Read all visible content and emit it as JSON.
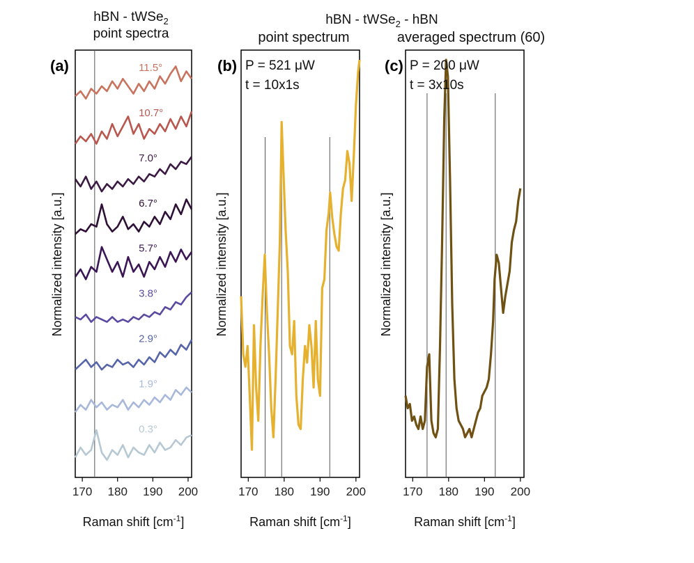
{
  "header": {
    "left_title_line1": "hBN - tWSe",
    "left_title_sub": "2",
    "left_title_line2": "point spectra",
    "right_title_main": "hBN - tWSe",
    "right_title_sub": "2",
    "right_title_tail": " - hBN",
    "panel_b_subtitle": "point spectrum",
    "panel_c_subtitle": "averaged spectrum (60)"
  },
  "chart_data": [
    {
      "panel": "(a)",
      "type": "line",
      "xlabel_main": "Raman shift [cm",
      "xlabel_sup": "-1",
      "xlabel_tail": "]",
      "ylabel": "Normalized intensity [a.u.]",
      "xlim": [
        168,
        201
      ],
      "xticks": [
        170,
        180,
        190,
        200
      ],
      "vlines": [
        173.5
      ],
      "series": [
        {
          "name": "11.5°",
          "color": "#c8735e",
          "label_x": 186,
          "x": [
            168,
            169.5,
            171,
            172.5,
            174,
            175.5,
            177,
            178.5,
            180,
            181.5,
            183,
            184.5,
            186,
            187.5,
            189,
            190.5,
            192,
            193.5,
            195,
            196.5,
            198,
            199.5,
            201
          ],
          "y": [
            0.3,
            0.5,
            0.2,
            0.6,
            0.4,
            0.7,
            0.5,
            0.9,
            0.6,
            1.0,
            0.7,
            0.4,
            0.8,
            0.5,
            0.9,
            0.6,
            1.1,
            0.8,
            1.2,
            1.5,
            0.9,
            1.3,
            1.0
          ]
        },
        {
          "name": "10.7°",
          "color": "#b9574f",
          "label_x": 186,
          "x": [
            168,
            169.5,
            171,
            172.5,
            174,
            175.5,
            177,
            178.5,
            180,
            181.5,
            183,
            184.5,
            186,
            187.5,
            189,
            190.5,
            192,
            193.5,
            195,
            196.5,
            198,
            199.5,
            201
          ],
          "y": [
            0.2,
            0.5,
            0.3,
            0.6,
            0.2,
            0.7,
            0.4,
            1.0,
            0.5,
            0.9,
            1.3,
            0.6,
            1.0,
            0.4,
            0.8,
            0.6,
            1.0,
            0.7,
            1.2,
            0.8,
            1.3,
            0.9,
            1.5
          ]
        },
        {
          "name": "7.0°",
          "color": "#3a1a42",
          "label_x": 186,
          "x": [
            168,
            169.5,
            171,
            172.5,
            174,
            175.5,
            177,
            178.5,
            180,
            181.5,
            183,
            184.5,
            186,
            187.5,
            189,
            190.5,
            192,
            193.5,
            195,
            196.5,
            198,
            199.5,
            201
          ],
          "y": [
            0.6,
            0.3,
            0.7,
            0.2,
            0.5,
            0.1,
            0.4,
            0.2,
            0.5,
            0.3,
            0.6,
            0.4,
            0.7,
            0.5,
            0.8,
            0.7,
            1.0,
            0.8,
            1.2,
            1.0,
            1.3,
            1.2,
            1.5
          ]
        },
        {
          "name": "6.7°",
          "color": "#2e0f35",
          "label_x": 186,
          "x": [
            168,
            169.5,
            171,
            172.5,
            174,
            175.5,
            177,
            178.5,
            180,
            181.5,
            183,
            184.5,
            186,
            187.5,
            189,
            190.5,
            192,
            193.5,
            195,
            196.5,
            198,
            199.5,
            201
          ],
          "y": [
            0.2,
            0.4,
            0.3,
            0.6,
            0.5,
            1.4,
            0.6,
            0.3,
            0.5,
            0.9,
            0.4,
            0.6,
            0.3,
            0.7,
            0.5,
            0.9,
            0.6,
            1.1,
            0.8,
            1.4,
            1.0,
            1.6,
            1.2
          ]
        },
        {
          "name": "5.7°",
          "color": "#3a1655",
          "label_x": 186,
          "x": [
            168,
            169.5,
            171,
            172.5,
            174,
            175.5,
            177,
            178.5,
            180,
            181.5,
            183,
            184.5,
            186,
            187.5,
            189,
            190.5,
            192,
            193.5,
            195,
            196.5,
            198,
            199.5,
            201
          ],
          "y": [
            0.3,
            0.6,
            0.2,
            0.7,
            0.5,
            1.5,
            1.0,
            0.5,
            0.9,
            0.3,
            1.1,
            0.5,
            0.8,
            0.3,
            0.9,
            0.6,
            1.1,
            0.7,
            1.3,
            0.9,
            1.4,
            1.0,
            1.3
          ]
        },
        {
          "name": "3.8°",
          "color": "#5b4aa0",
          "label_x": 186,
          "x": [
            168,
            169.5,
            171,
            172.5,
            174,
            175.5,
            177,
            178.5,
            180,
            181.5,
            183,
            184.5,
            186,
            187.5,
            189,
            190.5,
            192,
            193.5,
            195,
            196.5,
            198,
            199.5,
            201
          ],
          "y": [
            0.5,
            0.4,
            0.6,
            0.3,
            0.5,
            0.4,
            0.3,
            0.5,
            0.3,
            0.4,
            0.3,
            0.5,
            0.4,
            0.6,
            0.5,
            0.7,
            0.6,
            0.9,
            0.8,
            1.1,
            1.0,
            1.3,
            1.5
          ]
        },
        {
          "name": "2.9°",
          "color": "#5664aa",
          "label_x": 186,
          "x": [
            168,
            169.5,
            171,
            172.5,
            174,
            175.5,
            177,
            178.5,
            180,
            181.5,
            183,
            184.5,
            186,
            187.5,
            189,
            190.5,
            192,
            193.5,
            195,
            196.5,
            198,
            199.5,
            201
          ],
          "y": [
            0.2,
            0.4,
            0.6,
            0.3,
            0.5,
            0.2,
            0.4,
            0.3,
            0.6,
            0.4,
            0.5,
            0.3,
            0.6,
            0.4,
            0.7,
            0.5,
            0.9,
            0.7,
            1.0,
            0.8,
            1.2,
            1.0,
            1.4
          ]
        },
        {
          "name": "1.9°",
          "color": "#a8b8da",
          "label_x": 186,
          "x": [
            168,
            169.5,
            171,
            172.5,
            174,
            175.5,
            177,
            178.5,
            180,
            181.5,
            183,
            184.5,
            186,
            187.5,
            189,
            190.5,
            192,
            193.5,
            195,
            196.5,
            198,
            199.5,
            201
          ],
          "y": [
            0.3,
            0.6,
            0.4,
            0.8,
            0.5,
            0.7,
            0.4,
            0.6,
            0.5,
            0.8,
            0.4,
            0.7,
            0.5,
            0.8,
            0.6,
            0.9,
            0.7,
            1.0,
            0.8,
            1.2,
            1.0,
            1.3,
            1.1
          ]
        },
        {
          "name": "0.3°",
          "color": "#b6c8d3",
          "label_x": 186,
          "x": [
            168,
            169.5,
            171,
            172.5,
            174,
            175.5,
            177,
            178.5,
            180,
            181.5,
            183,
            184.5,
            186,
            187.5,
            189,
            190.5,
            192,
            193.5,
            195,
            196.5,
            198,
            199.5,
            201
          ],
          "y": [
            0.3,
            0.7,
            0.4,
            0.6,
            1.4,
            0.5,
            0.2,
            0.6,
            0.4,
            0.8,
            0.3,
            0.7,
            0.5,
            0.4,
            0.8,
            0.5,
            0.9,
            0.6,
            0.7,
            1.0,
            0.8,
            1.1,
            1.2
          ]
        }
      ]
    },
    {
      "panel": "(b)",
      "type": "line",
      "annotation1": "P = 521 μW",
      "annotation2": "t = 10x1s",
      "xlabel_main": "Raman shift [cm",
      "xlabel_sup": "-1",
      "xlabel_tail": "]",
      "ylabel": "Normalized intensity [a.u.]",
      "xlim": [
        168,
        201
      ],
      "ylim": [
        0,
        1
      ],
      "xticks": [
        170,
        180,
        190,
        200
      ],
      "vlines": [
        174.7,
        179.3,
        192.7
      ],
      "series": [
        {
          "name": "",
          "color": "#e6b12e",
          "x": [
            168,
            168.6,
            169.2,
            169.8,
            170.4,
            171,
            171.6,
            172.2,
            172.8,
            173.4,
            174,
            174.6,
            175.2,
            175.8,
            176.4,
            177,
            177.6,
            178.2,
            178.8,
            179.3,
            179.8,
            180.4,
            181,
            181.6,
            182.2,
            182.8,
            183.4,
            184,
            184.6,
            185.2,
            185.8,
            186.4,
            187,
            187.6,
            188.2,
            188.8,
            189.4,
            190,
            190.6,
            191.2,
            191.8,
            192.4,
            192.8,
            193.4,
            194,
            194.6,
            195.2,
            195.8,
            196.4,
            197,
            197.6,
            198.2,
            198.8,
            199.4,
            200,
            200.6,
            201
          ],
          "y": [
            0.42,
            0.28,
            0.25,
            0.3,
            0.18,
            0.05,
            0.35,
            0.2,
            0.12,
            0.3,
            0.42,
            0.52,
            0.38,
            0.28,
            0.15,
            0.08,
            0.22,
            0.38,
            0.55,
            0.84,
            0.72,
            0.58,
            0.48,
            0.3,
            0.28,
            0.36,
            0.18,
            0.11,
            0.1,
            0.22,
            0.3,
            0.26,
            0.35,
            0.3,
            0.2,
            0.36,
            0.22,
            0.18,
            0.44,
            0.46,
            0.58,
            0.62,
            0.67,
            0.61,
            0.57,
            0.54,
            0.53,
            0.62,
            0.68,
            0.7,
            0.77,
            0.74,
            0.65,
            0.76,
            0.88,
            0.96,
            0.99
          ]
        }
      ]
    },
    {
      "panel": "(c)",
      "type": "line",
      "annotation1": "P = 200 μW",
      "annotation2": "t = 3x10s",
      "xlabel_main": "Raman shift [cm",
      "xlabel_sup": "-1",
      "xlabel_tail": "]",
      "ylabel": "Normalized intensity [a.u.]",
      "xlim": [
        168,
        201
      ],
      "ylim": [
        0,
        1
      ],
      "xticks": [
        170,
        180,
        190,
        200
      ],
      "vlines": [
        174,
        179.3,
        193
      ],
      "series": [
        {
          "name": "",
          "color": "#6f5213",
          "x": [
            168,
            168.6,
            169.2,
            169.8,
            170.4,
            171,
            171.6,
            172.2,
            172.8,
            173.4,
            174,
            174.6,
            175.2,
            175.8,
            176.4,
            177,
            177.6,
            178.2,
            178.8,
            179.3,
            179.8,
            180.4,
            181,
            181.6,
            182.2,
            182.8,
            183.4,
            184,
            184.6,
            185.2,
            185.8,
            186.4,
            187,
            187.6,
            188.2,
            188.8,
            189.4,
            190,
            190.6,
            191.2,
            191.8,
            192.4,
            192.8,
            193.4,
            194,
            194.6,
            195.2,
            195.8,
            196.4,
            197,
            197.6,
            198.2,
            198.8,
            199.4,
            200
          ],
          "y": [
            0.18,
            0.15,
            0.16,
            0.12,
            0.13,
            0.11,
            0.1,
            0.13,
            0.1,
            0.12,
            0.25,
            0.28,
            0.12,
            0.09,
            0.08,
            0.1,
            0.3,
            0.55,
            0.85,
            0.99,
            0.95,
            0.7,
            0.4,
            0.22,
            0.15,
            0.12,
            0.11,
            0.1,
            0.08,
            0.09,
            0.1,
            0.08,
            0.1,
            0.12,
            0.14,
            0.15,
            0.18,
            0.19,
            0.2,
            0.22,
            0.28,
            0.36,
            0.46,
            0.52,
            0.5,
            0.44,
            0.38,
            0.42,
            0.45,
            0.48,
            0.55,
            0.58,
            0.6,
            0.65,
            0.68
          ]
        }
      ]
    }
  ]
}
